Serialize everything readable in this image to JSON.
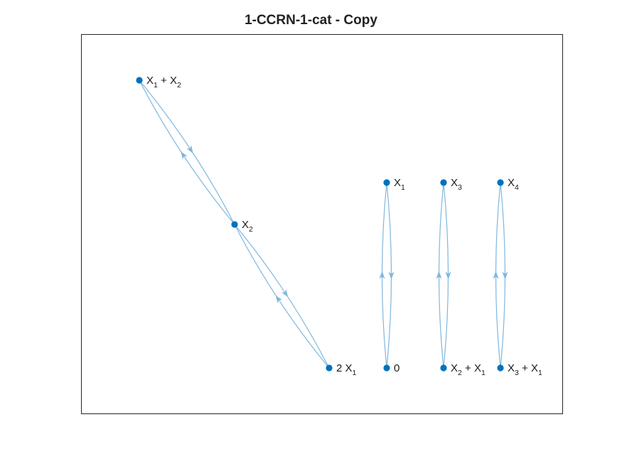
{
  "title": "1-CCRN-1-cat - Copy",
  "colors": {
    "node": "#0072BD",
    "edge": "#7FB7DE",
    "axes": "#262626"
  },
  "nodes": [
    {
      "id": "x1_plus_x2",
      "label": [
        {
          "t": "X"
        },
        {
          "t": "1",
          "sub": true
        },
        {
          "t": " + X"
        },
        {
          "t": "2",
          "sub": true
        }
      ]
    },
    {
      "id": "x2",
      "label": [
        {
          "t": "X"
        },
        {
          "t": "2",
          "sub": true
        }
      ]
    },
    {
      "id": "2x1",
      "label": [
        {
          "t": "2 X"
        },
        {
          "t": "1",
          "sub": true
        }
      ]
    },
    {
      "id": "x1",
      "label": [
        {
          "t": "X"
        },
        {
          "t": "1",
          "sub": true
        }
      ]
    },
    {
      "id": "zero",
      "label": [
        {
          "t": "0"
        }
      ]
    },
    {
      "id": "x3",
      "label": [
        {
          "t": "X"
        },
        {
          "t": "3",
          "sub": true
        }
      ]
    },
    {
      "id": "x2_plus_x1",
      "label": [
        {
          "t": "X"
        },
        {
          "t": "2",
          "sub": true
        },
        {
          "t": " + X"
        },
        {
          "t": "1",
          "sub": true
        }
      ]
    },
    {
      "id": "x4",
      "label": [
        {
          "t": "X"
        },
        {
          "t": "4",
          "sub": true
        }
      ]
    },
    {
      "id": "x3_plus_x1",
      "label": [
        {
          "t": "X"
        },
        {
          "t": "3",
          "sub": true
        },
        {
          "t": " + X"
        },
        {
          "t": "1",
          "sub": true
        }
      ]
    }
  ],
  "edges": [
    {
      "from": "x1_plus_x2",
      "to": "x2"
    },
    {
      "from": "x2",
      "to": "x1_plus_x2"
    },
    {
      "from": "x2",
      "to": "2x1"
    },
    {
      "from": "2x1",
      "to": "x2"
    },
    {
      "from": "x1",
      "to": "zero"
    },
    {
      "from": "zero",
      "to": "x1"
    },
    {
      "from": "x3",
      "to": "x2_plus_x1"
    },
    {
      "from": "x2_plus_x1",
      "to": "x3"
    },
    {
      "from": "x4",
      "to": "x3_plus_x1"
    },
    {
      "from": "x3_plus_x1",
      "to": "x4"
    }
  ]
}
